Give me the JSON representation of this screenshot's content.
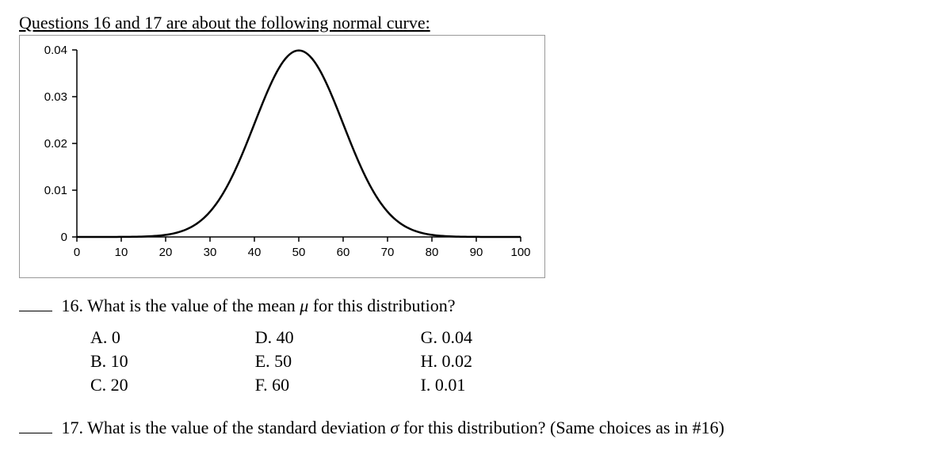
{
  "intro_text": "Questions 16 and 17 are about the following normal curve:",
  "chart": {
    "type": "line",
    "curve": "normal",
    "mu": 50,
    "sigma": 10,
    "xlim": [
      0,
      100
    ],
    "ylim": [
      0,
      0.04
    ],
    "x_ticks": [
      0,
      10,
      20,
      30,
      40,
      50,
      60,
      70,
      80,
      90,
      100
    ],
    "y_ticks": [
      0,
      0.01,
      0.02,
      0.03,
      0.04
    ],
    "y_tick_labels": [
      "0",
      "0.01",
      "0.02",
      "0.03",
      "0.04"
    ],
    "line_color": "#000000",
    "line_width": 2.5,
    "axis_color": "#000000",
    "tick_font_size": 15,
    "axis_font_family": "Arial"
  },
  "q16": {
    "text_prefix": "16. What is the value of the mean ",
    "symbol": "μ",
    "text_suffix": " for this distribution?",
    "choices": {
      "col1": [
        "A.  0",
        "B.  10",
        "C.  20"
      ],
      "col2": [
        "D.  40",
        "E.   50",
        "F.   60"
      ],
      "col3": [
        "G.  0.04",
        "H.  0.02",
        "I.    0.01"
      ]
    }
  },
  "q17": {
    "text_prefix": "17. What is the value of the standard deviation ",
    "symbol": "σ",
    "text_suffix": " for this distribution? (Same choices as in #16)"
  }
}
